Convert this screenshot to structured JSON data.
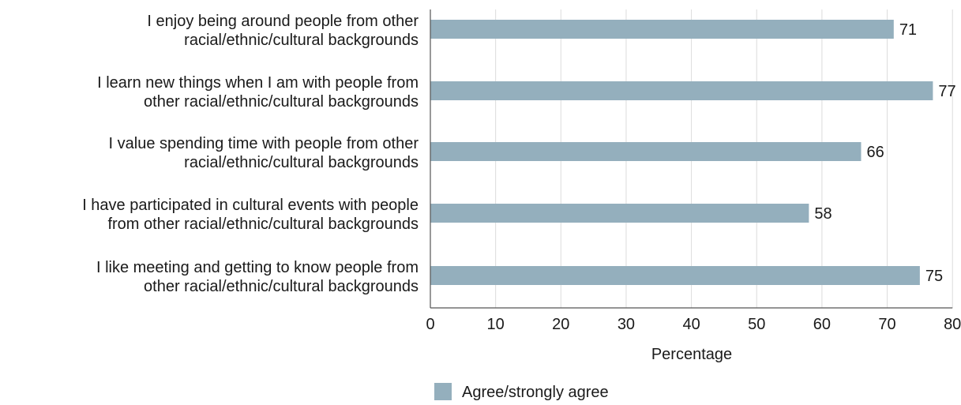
{
  "chart_data": {
    "type": "bar",
    "orientation": "horizontal",
    "categories": [
      [
        "I enjoy being around people from other",
        "racial/ethnic/cultural backgrounds"
      ],
      [
        "I learn new things when I am with people from",
        "other racial/ethnic/cultural backgrounds"
      ],
      [
        "I value spending time with people from other",
        "racial/ethnic/cultural backgrounds"
      ],
      [
        "I have participated in cultural events with people",
        "from other racial/ethnic/cultural backgrounds"
      ],
      [
        "I like meeting and getting to know people from",
        "other racial/ethnic/cultural backgrounds"
      ]
    ],
    "series": [
      {
        "name": "Agree/strongly agree",
        "values": [
          71,
          77,
          66,
          58,
          75
        ],
        "color": "#94afbd"
      }
    ],
    "xlabel": "Percentage",
    "ylabel": "",
    "xlim": [
      0,
      80
    ],
    "xticks": [
      0,
      10,
      20,
      30,
      40,
      50,
      60,
      70,
      80
    ],
    "grid": true,
    "legend_position": "bottom-center"
  }
}
